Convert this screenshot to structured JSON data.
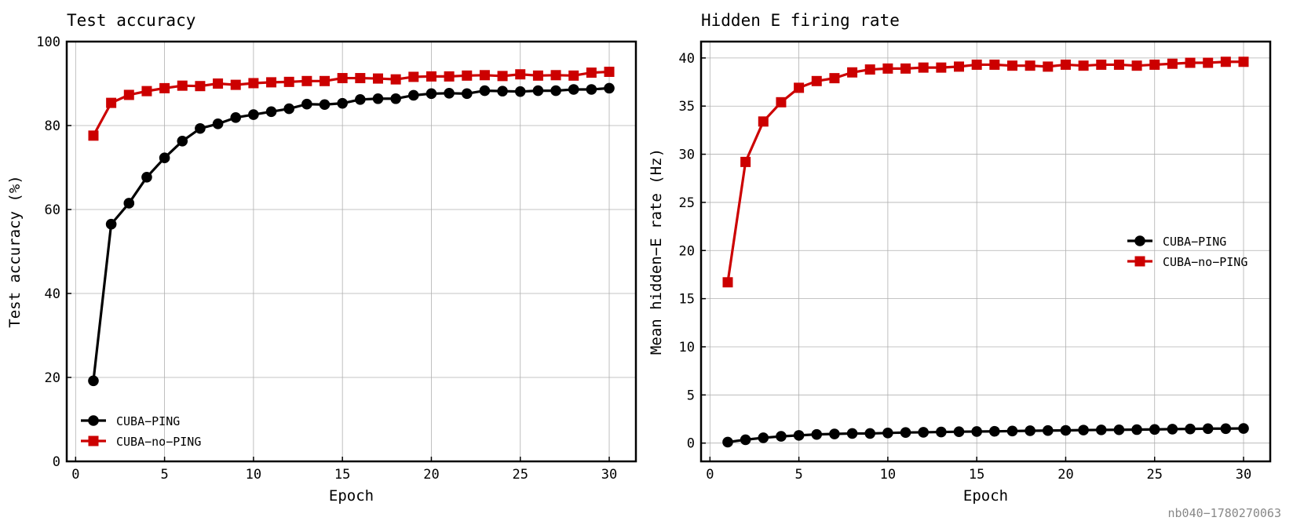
{
  "watermark": "nb040−1780270063",
  "colors": {
    "ping": "#000000",
    "no_ping": "#cc0000",
    "grid": "#b0b0b0"
  },
  "chart_data": [
    {
      "type": "line",
      "title": "Test accuracy",
      "xlabel": "Epoch",
      "ylabel": "Test accuracy (%)",
      "xlim": [
        -0.5,
        31.5
      ],
      "ylim": [
        0,
        100
      ],
      "xticks": [
        0,
        5,
        10,
        15,
        20,
        25,
        30
      ],
      "yticks": [
        0,
        20,
        40,
        60,
        80,
        100
      ],
      "grid": true,
      "legend_position": "lower-left",
      "x": [
        1,
        2,
        3,
        4,
        5,
        6,
        7,
        8,
        9,
        10,
        11,
        12,
        13,
        14,
        15,
        16,
        17,
        18,
        19,
        20,
        21,
        22,
        23,
        24,
        25,
        26,
        27,
        28,
        29,
        30
      ],
      "series": [
        {
          "name": "CUBA−PING",
          "color": "#000000",
          "marker": "circle",
          "values": [
            19.2,
            56.5,
            61.5,
            67.7,
            72.3,
            76.3,
            79.3,
            80.4,
            81.9,
            82.6,
            83.3,
            84.0,
            85.1,
            85.0,
            85.3,
            86.2,
            86.4,
            86.4,
            87.2,
            87.6,
            87.7,
            87.6,
            88.3,
            88.2,
            88.1,
            88.3,
            88.3,
            88.6,
            88.6,
            88.9
          ]
        },
        {
          "name": "CUBA−no−PING",
          "color": "#cc0000",
          "marker": "square",
          "values": [
            77.6,
            85.4,
            87.3,
            88.2,
            88.9,
            89.5,
            89.4,
            90.0,
            89.7,
            90.1,
            90.3,
            90.4,
            90.6,
            90.6,
            91.3,
            91.3,
            91.2,
            91.0,
            91.6,
            91.7,
            91.7,
            91.9,
            92.0,
            91.8,
            92.2,
            91.9,
            92.0,
            91.9,
            92.6,
            92.8
          ]
        }
      ]
    },
    {
      "type": "line",
      "title": "Hidden E firing rate",
      "xlabel": "Epoch",
      "ylabel": "Mean hidden−E rate (Hz)",
      "xlim": [
        -0.5,
        31.5
      ],
      "ylim": [
        -1.9,
        41.7
      ],
      "xticks": [
        0,
        5,
        10,
        15,
        20,
        25,
        30
      ],
      "yticks": [
        0,
        5,
        10,
        15,
        20,
        25,
        30,
        35,
        40
      ],
      "grid": true,
      "legend_position": "center-right",
      "x": [
        1,
        2,
        3,
        4,
        5,
        6,
        7,
        8,
        9,
        10,
        11,
        12,
        13,
        14,
        15,
        16,
        17,
        18,
        19,
        20,
        21,
        22,
        23,
        24,
        25,
        26,
        27,
        28,
        29,
        30
      ],
      "series": [
        {
          "name": "CUBA−PING",
          "color": "#000000",
          "marker": "circle",
          "values": [
            0.1,
            0.35,
            0.55,
            0.7,
            0.8,
            0.9,
            0.95,
            1.0,
            1.0,
            1.05,
            1.1,
            1.12,
            1.15,
            1.18,
            1.2,
            1.22,
            1.25,
            1.28,
            1.3,
            1.32,
            1.35,
            1.37,
            1.38,
            1.4,
            1.42,
            1.45,
            1.47,
            1.5,
            1.5,
            1.52
          ]
        },
        {
          "name": "CUBA−no−PING",
          "color": "#cc0000",
          "marker": "square",
          "values": [
            16.7,
            29.2,
            33.4,
            35.4,
            36.9,
            37.6,
            37.9,
            38.5,
            38.8,
            38.9,
            38.9,
            39.0,
            39.0,
            39.1,
            39.3,
            39.3,
            39.2,
            39.2,
            39.1,
            39.3,
            39.2,
            39.3,
            39.3,
            39.2,
            39.3,
            39.4,
            39.5,
            39.5,
            39.6,
            39.6
          ]
        }
      ]
    }
  ]
}
